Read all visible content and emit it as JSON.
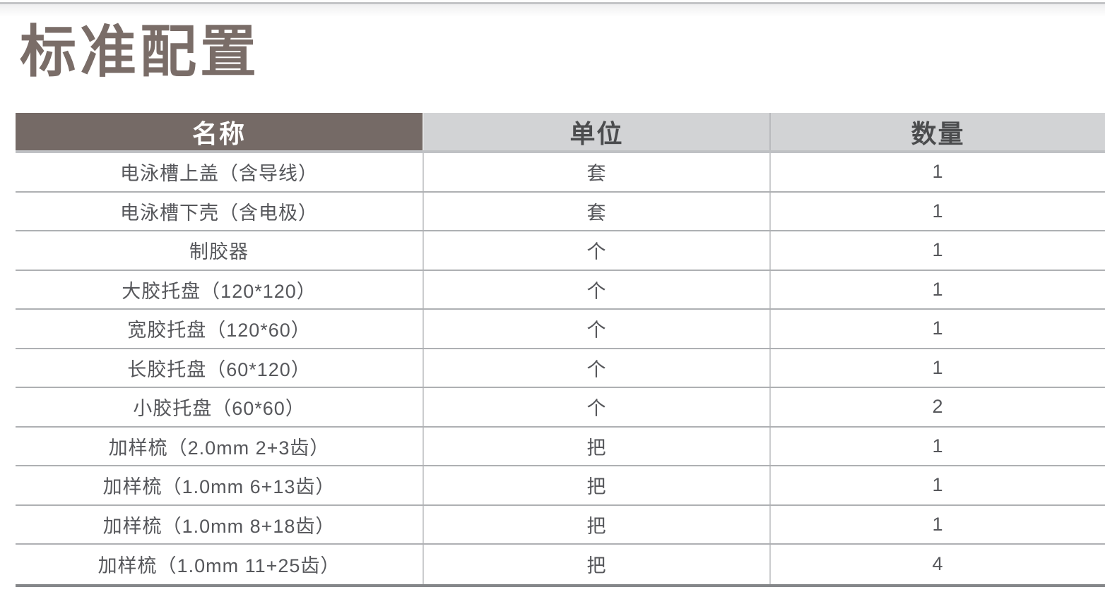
{
  "page": {
    "title": "标准配置"
  },
  "table": {
    "columns": [
      {
        "label": "名称"
      },
      {
        "label": "单位"
      },
      {
        "label": "数量"
      }
    ],
    "rows": [
      {
        "name": "电泳槽上盖（含导线）",
        "unit": "套",
        "qty": "1"
      },
      {
        "name": "电泳槽下壳（含电极）",
        "unit": "套",
        "qty": "1"
      },
      {
        "name": "制胶器",
        "unit": "个",
        "qty": "1"
      },
      {
        "name": "大胶托盘（120*120）",
        "unit": "个",
        "qty": "1"
      },
      {
        "name": "宽胶托盘（120*60）",
        "unit": "个",
        "qty": "1"
      },
      {
        "name": "长胶托盘（60*120）",
        "unit": "个",
        "qty": "1"
      },
      {
        "name": "小胶托盘（60*60）",
        "unit": "个",
        "qty": "2"
      },
      {
        "name": "加样梳（2.0mm 2+3齿）",
        "unit": "把",
        "qty": "1"
      },
      {
        "name": "加样梳（1.0mm 6+13齿）",
        "unit": "把",
        "qty": "1"
      },
      {
        "name": "加样梳（1.0mm 8+18齿）",
        "unit": "把",
        "qty": "1"
      },
      {
        "name": "加样梳（1.0mm 11+25齿）",
        "unit": "把",
        "qty": "4"
      }
    ]
  },
  "colors": {
    "title_text": "#7a6d68",
    "header_primary_bg": "#756a66",
    "header_primary_text": "#ffffff",
    "header_secondary_bg": "#d2d3d5",
    "header_secondary_text": "#4b4c4e",
    "body_text": "#56575b",
    "row_divider": "#aeb0b3",
    "table_bottom_border": "#85878a"
  }
}
